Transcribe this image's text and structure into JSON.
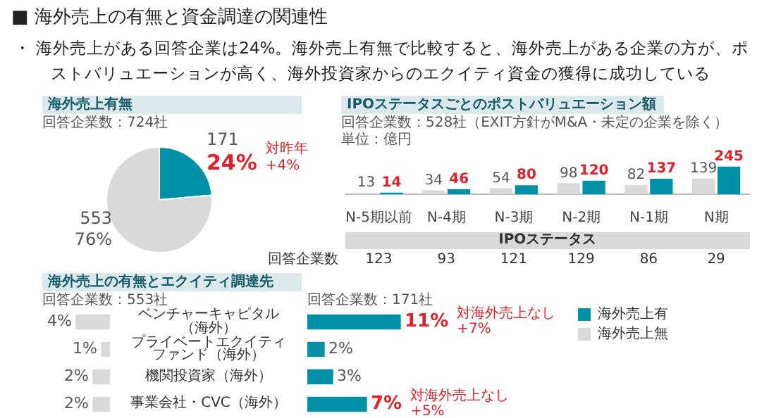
{
  "chart_data": [
    {
      "type": "pie",
      "title": "海外売上有無",
      "subtitle": "回答企業数：724社",
      "categories": [
        null,
        null
      ],
      "values": [
        171,
        553
      ],
      "colors": [
        "#0090a8",
        "#d9d9d9"
      ],
      "value_labels": [
        "171\n24%",
        "553\n76%"
      ],
      "annotations": [
        "■ 海外売上の有無と資金調達の関連性",
        "・ 海外売上がある回答企業は24%。海外売上有無で比較すると、海外売上がある企業の方が、ポストバリュエーションが高く、海外投資家からのエクイティ資金の獲得に成功している",
        "対昨年\n+4%"
      ]
    },
    {
      "type": "bar",
      "title": "IPOステータスごとのポストバリュエーション額",
      "subtitle": "回答企業数：528社（EXIT方針がM&A・未定の企業を除く）",
      "xlabel": "IPOステータス",
      "categories": [
        "N-5期以前",
        "N-4期",
        "N-3期",
        "N-2期",
        "N-1期",
        "N期"
      ],
      "series": [
        {
          "color": "#d9d9d9",
          "values": [
            13,
            34,
            54,
            98,
            82,
            139
          ]
        },
        {
          "color": "#0090a8",
          "values": [
            14,
            46,
            80,
            120,
            137,
            245
          ]
        }
      ],
      "data_labels": true,
      "annotations": [
        "単位：億円",
        "回答企業数",
        "123",
        "93",
        "121",
        "129",
        "86",
        "29"
      ]
    },
    {
      "type": "bar",
      "orientation": "horizontal",
      "title": "海外売上の有無とエクイティ調達先",
      "subtitle": "回答企業数：553社",
      "categories": [
        "ベンチャーキャピタル（海外）",
        "プライベートエクイティファンド（海外）",
        "機関投資家（海外）",
        "事業会社・CVC（海外）"
      ],
      "series": [
        {
          "name": "海外売上無",
          "color": "#d9d9d9",
          "values": [
            4,
            1,
            2,
            2
          ],
          "value_labels": [
            "4%",
            "1%",
            "2%",
            "2%"
          ]
        }
      ],
      "tick_labels": "y",
      "legend": "right"
    },
    {
      "type": "bar",
      "orientation": "horizontal",
      "subtitle": "回答企業数：171社",
      "categories": [
        null,
        null,
        null,
        null
      ],
      "series": [
        {
          "name": "海外売上有",
          "color": "#0090a8",
          "values": [
            11,
            2,
            3,
            7
          ],
          "value_labels": [
            "11%",
            "2%",
            "3%",
            "7%"
          ]
        }
      ],
      "tick_labels": false,
      "legend": "right",
      "annotations": [
        "対海外売上なし\n+7%",
        "対海外売上なし\n+5%"
      ]
    }
  ]
}
